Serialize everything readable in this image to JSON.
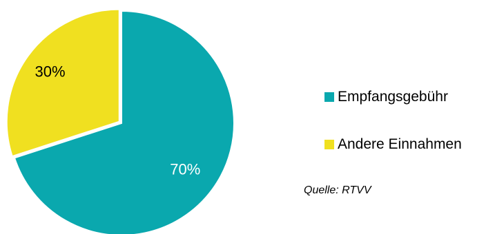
{
  "chart_data": {
    "type": "pie",
    "slices": [
      {
        "name": "Empfangsgebühr",
        "value": 70,
        "label": "70%",
        "color": "#0aa8ae"
      },
      {
        "name": "Andere Einnahmen",
        "value": 30,
        "label": "30%",
        "color": "#f0e020"
      }
    ],
    "legend_position": "right",
    "source": "Quelle: RTVV"
  }
}
